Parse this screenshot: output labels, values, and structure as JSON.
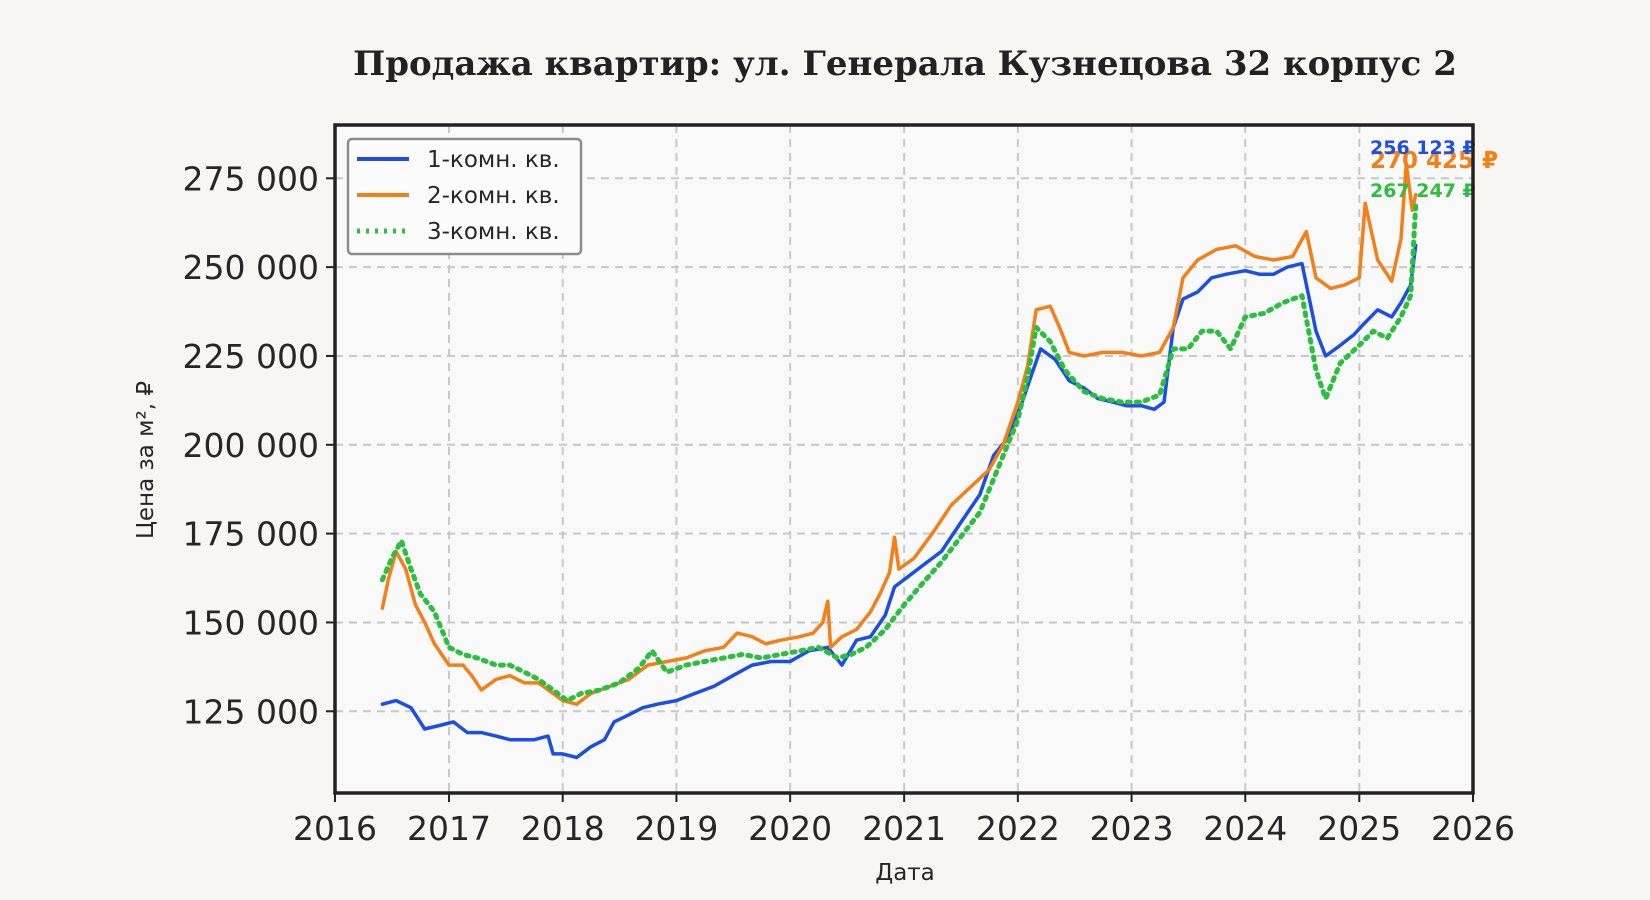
{
  "chart_data": {
    "type": "line",
    "title": "Продажа квартир: ул. Генерала Кузнецова 32 корпус 2",
    "xlabel": "Дата",
    "ylabel": "Цена за м², ₽",
    "xlim": [
      "2016-01-01",
      "2026-01-01"
    ],
    "ylim": [
      102000,
      290000
    ],
    "x_ticks": [
      "2016",
      "2017",
      "2018",
      "2019",
      "2020",
      "2021",
      "2022",
      "2023",
      "2024",
      "2025",
      "2026"
    ],
    "y_ticks": [
      125000,
      150000,
      175000,
      200000,
      225000,
      250000,
      275000
    ],
    "y_tick_labels": [
      "125 000",
      "150 000",
      "175 000",
      "200 000",
      "225 000",
      "250 000",
      "275 000"
    ],
    "grid": true,
    "legend_position": "top-left",
    "series": [
      {
        "name": "1-комн. кв.",
        "color": "#1a4ee6",
        "style": "solid",
        "end_label": "256 123 ₽",
        "points": [
          [
            "2016-06-01",
            127000
          ],
          [
            "2016-07-15",
            128000
          ],
          [
            "2016-09-01",
            126000
          ],
          [
            "2016-10-15",
            120000
          ],
          [
            "2016-12-01",
            121000
          ],
          [
            "2017-01-15",
            122000
          ],
          [
            "2017-03-01",
            119000
          ],
          [
            "2017-04-15",
            119000
          ],
          [
            "2017-06-01",
            118000
          ],
          [
            "2017-07-15",
            117000
          ],
          [
            "2017-09-01",
            117000
          ],
          [
            "2017-10-01",
            117000
          ],
          [
            "2017-11-15",
            118000
          ],
          [
            "2017-12-01",
            113000
          ],
          [
            "2018-01-01",
            113000
          ],
          [
            "2018-02-15",
            112000
          ],
          [
            "2018-04-01",
            115000
          ],
          [
            "2018-05-15",
            117000
          ],
          [
            "2018-06-15",
            122000
          ],
          [
            "2018-08-01",
            124000
          ],
          [
            "2018-09-15",
            126000
          ],
          [
            "2018-11-01",
            127000
          ],
          [
            "2019-01-01",
            128000
          ],
          [
            "2019-03-01",
            130000
          ],
          [
            "2019-05-01",
            132000
          ],
          [
            "2019-07-01",
            135000
          ],
          [
            "2019-09-01",
            138000
          ],
          [
            "2019-11-01",
            139000
          ],
          [
            "2020-01-01",
            139000
          ],
          [
            "2020-03-01",
            142000
          ],
          [
            "2020-05-01",
            143000
          ],
          [
            "2020-06-15",
            138000
          ],
          [
            "2020-08-01",
            145000
          ],
          [
            "2020-09-15",
            146000
          ],
          [
            "2020-11-01",
            152000
          ],
          [
            "2020-12-01",
            160000
          ],
          [
            "2021-01-15",
            163000
          ],
          [
            "2021-03-01",
            166000
          ],
          [
            "2021-05-01",
            170000
          ],
          [
            "2021-07-01",
            178000
          ],
          [
            "2021-09-01",
            186000
          ],
          [
            "2021-10-15",
            197000
          ],
          [
            "2021-12-01",
            202000
          ],
          [
            "2022-01-15",
            212000
          ],
          [
            "2022-02-15",
            220000
          ],
          [
            "2022-03-15",
            227000
          ],
          [
            "2022-05-01",
            224000
          ],
          [
            "2022-06-15",
            218000
          ],
          [
            "2022-08-01",
            216000
          ],
          [
            "2022-09-15",
            213000
          ],
          [
            "2022-11-01",
            212000
          ],
          [
            "2022-12-15",
            211000
          ],
          [
            "2023-02-01",
            211000
          ],
          [
            "2023-03-15",
            210000
          ],
          [
            "2023-04-15",
            212000
          ],
          [
            "2023-05-15",
            233000
          ],
          [
            "2023-06-15",
            241000
          ],
          [
            "2023-08-01",
            243000
          ],
          [
            "2023-09-15",
            247000
          ],
          [
            "2023-11-01",
            248000
          ],
          [
            "2024-01-01",
            249000
          ],
          [
            "2024-02-15",
            248000
          ],
          [
            "2024-04-01",
            248000
          ],
          [
            "2024-05-15",
            250000
          ],
          [
            "2024-07-01",
            251000
          ],
          [
            "2024-08-15",
            232000
          ],
          [
            "2024-09-15",
            225000
          ],
          [
            "2024-11-01",
            228000
          ],
          [
            "2024-12-15",
            231000
          ],
          [
            "2025-01-15",
            234000
          ],
          [
            "2025-03-01",
            238000
          ],
          [
            "2025-04-15",
            236000
          ],
          [
            "2025-05-15",
            240000
          ],
          [
            "2025-06-15",
            245000
          ],
          [
            "2025-07-01",
            256123
          ]
        ]
      },
      {
        "name": "2-комн. кв.",
        "color": "#f57f17",
        "style": "solid-marker",
        "end_label": "270 425 ₽",
        "points": [
          [
            "2016-06-01",
            154000
          ],
          [
            "2016-06-20",
            162000
          ],
          [
            "2016-07-15",
            170000
          ],
          [
            "2016-08-15",
            165000
          ],
          [
            "2016-09-15",
            155000
          ],
          [
            "2016-10-15",
            150000
          ],
          [
            "2016-11-15",
            144000
          ],
          [
            "2017-01-01",
            138000
          ],
          [
            "2017-02-15",
            138000
          ],
          [
            "2017-03-15",
            135000
          ],
          [
            "2017-04-15",
            131000
          ],
          [
            "2017-06-01",
            134000
          ],
          [
            "2017-07-15",
            135000
          ],
          [
            "2017-09-01",
            133000
          ],
          [
            "2017-10-15",
            133000
          ],
          [
            "2017-12-01",
            130000
          ],
          [
            "2018-01-01",
            128000
          ],
          [
            "2018-02-15",
            127000
          ],
          [
            "2018-04-01",
            130000
          ],
          [
            "2018-06-01",
            132000
          ],
          [
            "2018-08-01",
            134000
          ],
          [
            "2018-10-01",
            138000
          ],
          [
            "2018-12-01",
            139000
          ],
          [
            "2019-02-01",
            140000
          ],
          [
            "2019-04-01",
            142000
          ],
          [
            "2019-06-01",
            143000
          ],
          [
            "2019-07-15",
            147000
          ],
          [
            "2019-09-01",
            146000
          ],
          [
            "2019-10-15",
            144000
          ],
          [
            "2019-12-01",
            145000
          ],
          [
            "2020-02-01",
            146000
          ],
          [
            "2020-03-15",
            147000
          ],
          [
            "2020-04-15",
            150000
          ],
          [
            "2020-05-01",
            156000
          ],
          [
            "2020-05-10",
            143000
          ],
          [
            "2020-06-15",
            146000
          ],
          [
            "2020-08-01",
            148000
          ],
          [
            "2020-09-15",
            153000
          ],
          [
            "2020-10-15",
            158000
          ],
          [
            "2020-11-15",
            164000
          ],
          [
            "2020-12-01",
            174000
          ],
          [
            "2020-12-15",
            165000
          ],
          [
            "2021-02-01",
            168000
          ],
          [
            "2021-04-01",
            175000
          ],
          [
            "2021-06-01",
            183000
          ],
          [
            "2021-08-01",
            188000
          ],
          [
            "2021-10-01",
            193000
          ],
          [
            "2021-11-15",
            200000
          ],
          [
            "2022-01-01",
            212000
          ],
          [
            "2022-02-01",
            222000
          ],
          [
            "2022-03-01",
            238000
          ],
          [
            "2022-04-15",
            239000
          ],
          [
            "2022-05-15",
            233000
          ],
          [
            "2022-06-15",
            226000
          ],
          [
            "2022-08-01",
            225000
          ],
          [
            "2022-10-01",
            226000
          ],
          [
            "2022-12-01",
            226000
          ],
          [
            "2023-02-01",
            225000
          ],
          [
            "2023-04-01",
            226000
          ],
          [
            "2023-05-15",
            233000
          ],
          [
            "2023-06-15",
            247000
          ],
          [
            "2023-08-01",
            252000
          ],
          [
            "2023-10-01",
            255000
          ],
          [
            "2023-12-01",
            256000
          ],
          [
            "2024-02-01",
            253000
          ],
          [
            "2024-04-01",
            252000
          ],
          [
            "2024-06-01",
            253000
          ],
          [
            "2024-07-15",
            260000
          ],
          [
            "2024-08-15",
            247000
          ],
          [
            "2024-10-01",
            244000
          ],
          [
            "2024-11-15",
            245000
          ],
          [
            "2025-01-01",
            247000
          ],
          [
            "2025-01-20",
            268000
          ],
          [
            "2025-03-01",
            252000
          ],
          [
            "2025-04-15",
            246000
          ],
          [
            "2025-05-15",
            258000
          ],
          [
            "2025-06-01",
            279000
          ],
          [
            "2025-06-20",
            266000
          ],
          [
            "2025-07-01",
            270425
          ]
        ]
      },
      {
        "name": "3-комн. кв.",
        "color": "#2cbf3f",
        "style": "dotted",
        "end_label": "267 247 ₽",
        "points": [
          [
            "2016-06-01",
            162000
          ],
          [
            "2016-07-01",
            168000
          ],
          [
            "2016-08-01",
            173000
          ],
          [
            "2016-09-01",
            165000
          ],
          [
            "2016-10-01",
            158000
          ],
          [
            "2016-11-15",
            153000
          ],
          [
            "2017-01-01",
            143000
          ],
          [
            "2017-02-15",
            141000
          ],
          [
            "2017-04-01",
            140000
          ],
          [
            "2017-06-01",
            138000
          ],
          [
            "2017-07-15",
            138000
          ],
          [
            "2017-09-01",
            136000
          ],
          [
            "2017-10-15",
            134000
          ],
          [
            "2017-12-01",
            131000
          ],
          [
            "2018-01-15",
            128000
          ],
          [
            "2018-03-01",
            130000
          ],
          [
            "2018-05-01",
            131000
          ],
          [
            "2018-07-01",
            133000
          ],
          [
            "2018-09-01",
            137000
          ],
          [
            "2018-10-15",
            142000
          ],
          [
            "2018-12-01",
            136000
          ],
          [
            "2019-02-01",
            138000
          ],
          [
            "2019-04-01",
            139000
          ],
          [
            "2019-06-01",
            140000
          ],
          [
            "2019-08-01",
            141000
          ],
          [
            "2019-10-01",
            140000
          ],
          [
            "2019-12-01",
            141000
          ],
          [
            "2020-02-01",
            142000
          ],
          [
            "2020-04-01",
            143000
          ],
          [
            "2020-06-01",
            140000
          ],
          [
            "2020-07-15",
            141000
          ],
          [
            "2020-09-01",
            143000
          ],
          [
            "2020-11-01",
            148000
          ],
          [
            "2021-01-01",
            155000
          ],
          [
            "2021-03-01",
            161000
          ],
          [
            "2021-05-01",
            167000
          ],
          [
            "2021-07-01",
            174000
          ],
          [
            "2021-09-01",
            181000
          ],
          [
            "2021-11-01",
            194000
          ],
          [
            "2022-01-01",
            207000
          ],
          [
            "2022-02-01",
            219000
          ],
          [
            "2022-03-01",
            233000
          ],
          [
            "2022-04-15",
            229000
          ],
          [
            "2022-06-01",
            221000
          ],
          [
            "2022-08-01",
            215000
          ],
          [
            "2022-10-01",
            213000
          ],
          [
            "2022-12-01",
            212000
          ],
          [
            "2023-02-01",
            212000
          ],
          [
            "2023-04-01",
            214000
          ],
          [
            "2023-05-15",
            227000
          ],
          [
            "2023-07-01",
            227000
          ],
          [
            "2023-08-15",
            232000
          ],
          [
            "2023-10-01",
            232000
          ],
          [
            "2023-11-15",
            227000
          ],
          [
            "2024-01-01",
            236000
          ],
          [
            "2024-03-01",
            237000
          ],
          [
            "2024-05-01",
            240000
          ],
          [
            "2024-07-01",
            242000
          ],
          [
            "2024-08-15",
            221000
          ],
          [
            "2024-09-15",
            213000
          ],
          [
            "2024-11-01",
            223000
          ],
          [
            "2025-01-01",
            228000
          ],
          [
            "2025-02-15",
            232000
          ],
          [
            "2025-04-01",
            230000
          ],
          [
            "2025-05-15",
            236000
          ],
          [
            "2025-06-15",
            242000
          ],
          [
            "2025-07-01",
            267247
          ]
        ]
      }
    ]
  }
}
